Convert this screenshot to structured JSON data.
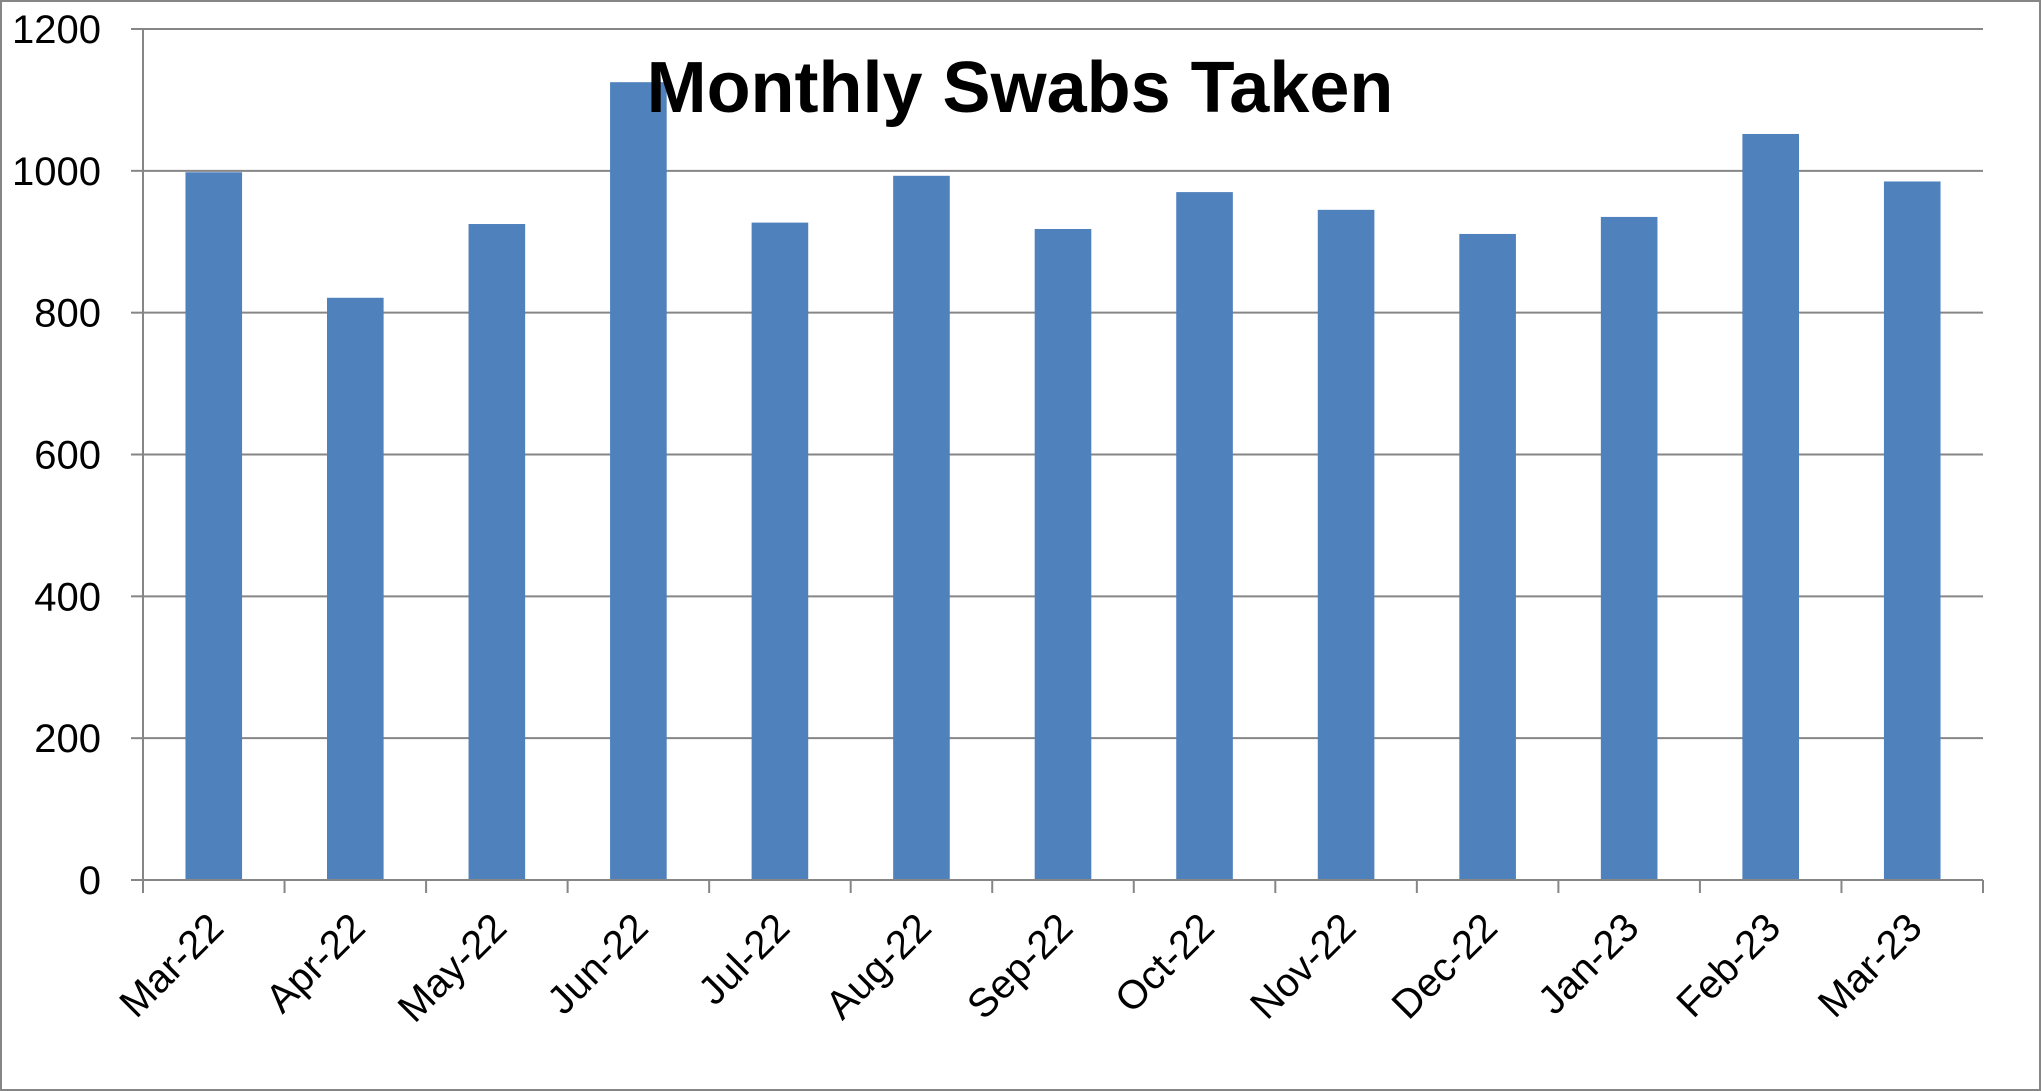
{
  "chart_data": {
    "type": "bar",
    "title": "Monthly Swabs Taken",
    "xlabel": "",
    "ylabel": "",
    "categories": [
      "Mar-22",
      "Apr-22",
      "May-22",
      "Jun-22",
      "Jul-22",
      "Aug-22",
      "Sep-22",
      "Oct-22",
      "Nov-22",
      "Dec-22",
      "Jan-23",
      "Feb-23",
      "Mar-23"
    ],
    "values": [
      998,
      821,
      925,
      1125,
      927,
      993,
      918,
      970,
      945,
      911,
      935,
      1052,
      985
    ],
    "ylim": [
      0,
      1200
    ],
    "yticks": [
      0,
      200,
      400,
      600,
      800,
      1000,
      1200
    ],
    "grid": true,
    "legend": "none",
    "colors": {
      "bar": "#4f81bd",
      "grid": "#868686",
      "axis": "#868686",
      "border": "#868686",
      "text": "#000000"
    }
  }
}
